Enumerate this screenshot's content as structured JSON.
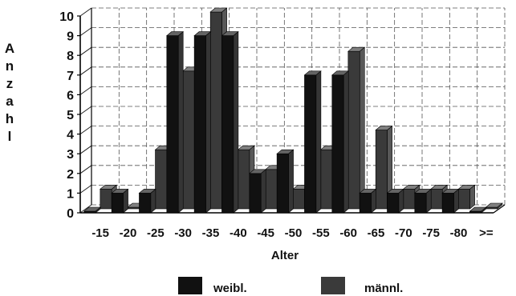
{
  "chart_data": {
    "type": "bar",
    "title": "",
    "xlabel": "Alter",
    "ylabel": "Anzahl",
    "ylim": [
      0,
      10
    ],
    "yticks": [
      "0",
      "1",
      "2",
      "3",
      "4",
      "5",
      "6",
      "7",
      "8",
      "9",
      "10"
    ],
    "grid": true,
    "legend_position": "bottom",
    "categories": [
      "-15",
      "-20",
      "-25",
      "-30",
      "-35",
      "-40",
      "-45",
      "-50",
      "-55",
      "-60",
      "-65",
      "-70",
      "-75",
      "-80",
      ">="
    ],
    "series": [
      {
        "name": "weibl.",
        "color": "#111111",
        "values": [
          0,
          1,
          1,
          9,
          9,
          9,
          2,
          3,
          7,
          7,
          1,
          1,
          1,
          1,
          0
        ]
      },
      {
        "name": "männl.",
        "color": "#3a3a3a",
        "values": [
          1,
          0,
          3,
          7,
          10,
          3,
          2,
          1,
          3,
          8,
          4,
          1,
          1,
          1,
          0
        ]
      }
    ]
  }
}
